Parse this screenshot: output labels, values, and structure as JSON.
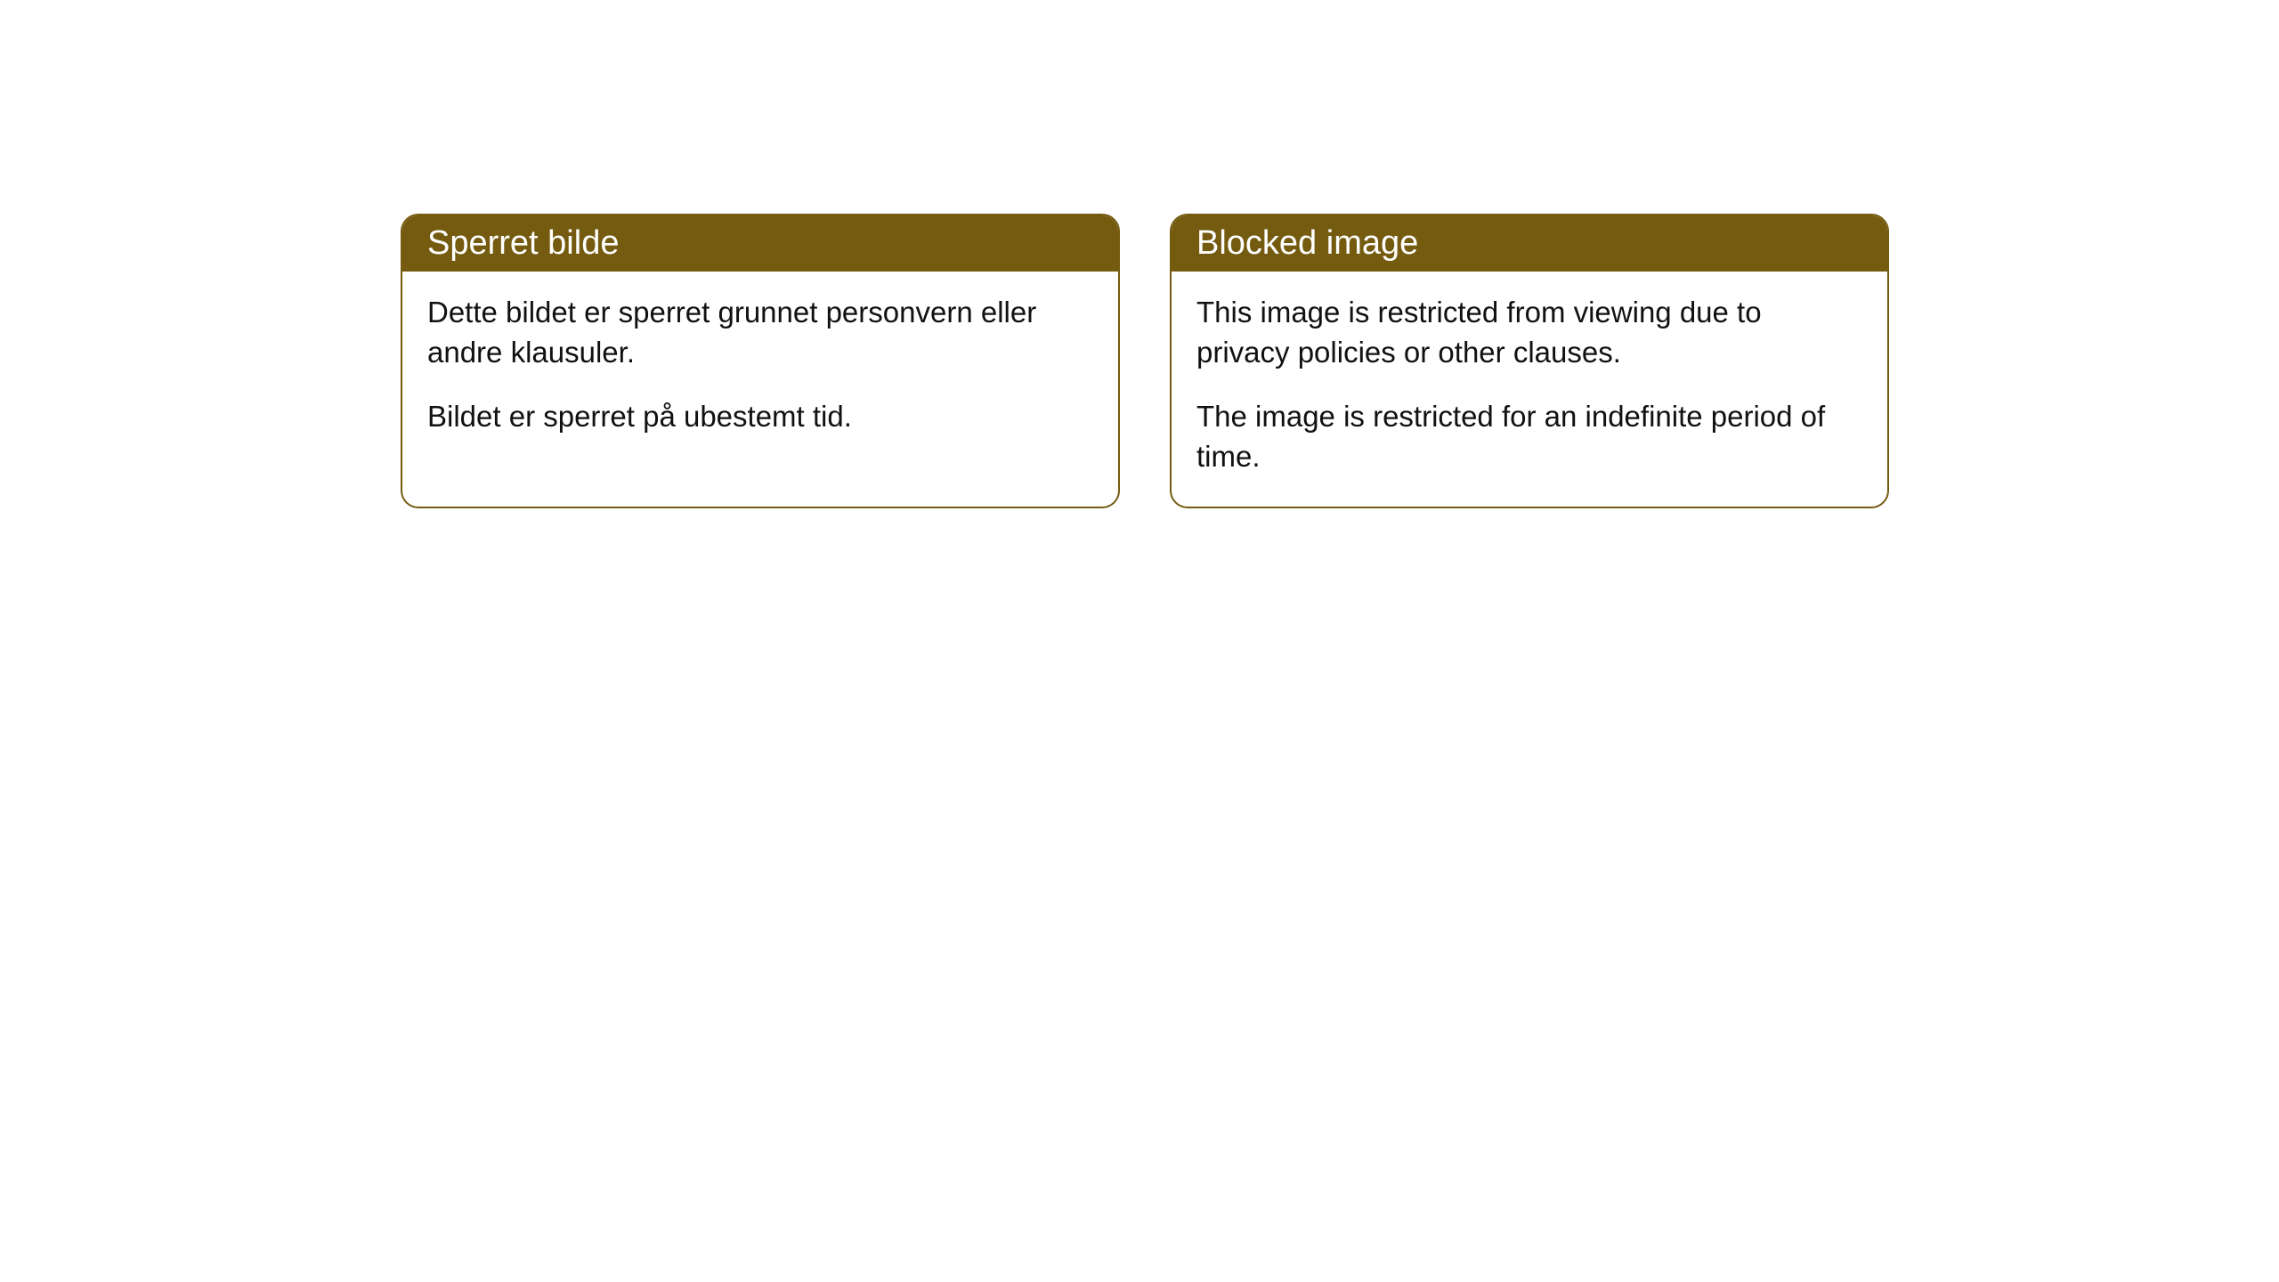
{
  "styling": {
    "header_bg_color": "#745b10",
    "header_text_color": "#ffffff",
    "border_color": "#745b10",
    "body_text_color": "#111111",
    "page_bg_color": "#ffffff",
    "border_radius": 20,
    "header_fontsize": 38,
    "body_fontsize": 33
  },
  "cards": [
    {
      "title": "Sperret bilde",
      "paragraph1": "Dette bildet er sperret grunnet personvern eller andre klausuler.",
      "paragraph2": "Bildet er sperret på ubestemt tid."
    },
    {
      "title": "Blocked image",
      "paragraph1": "This image is restricted from viewing due to privacy policies or other clauses.",
      "paragraph2": "The image is restricted for an indefinite period of time."
    }
  ]
}
